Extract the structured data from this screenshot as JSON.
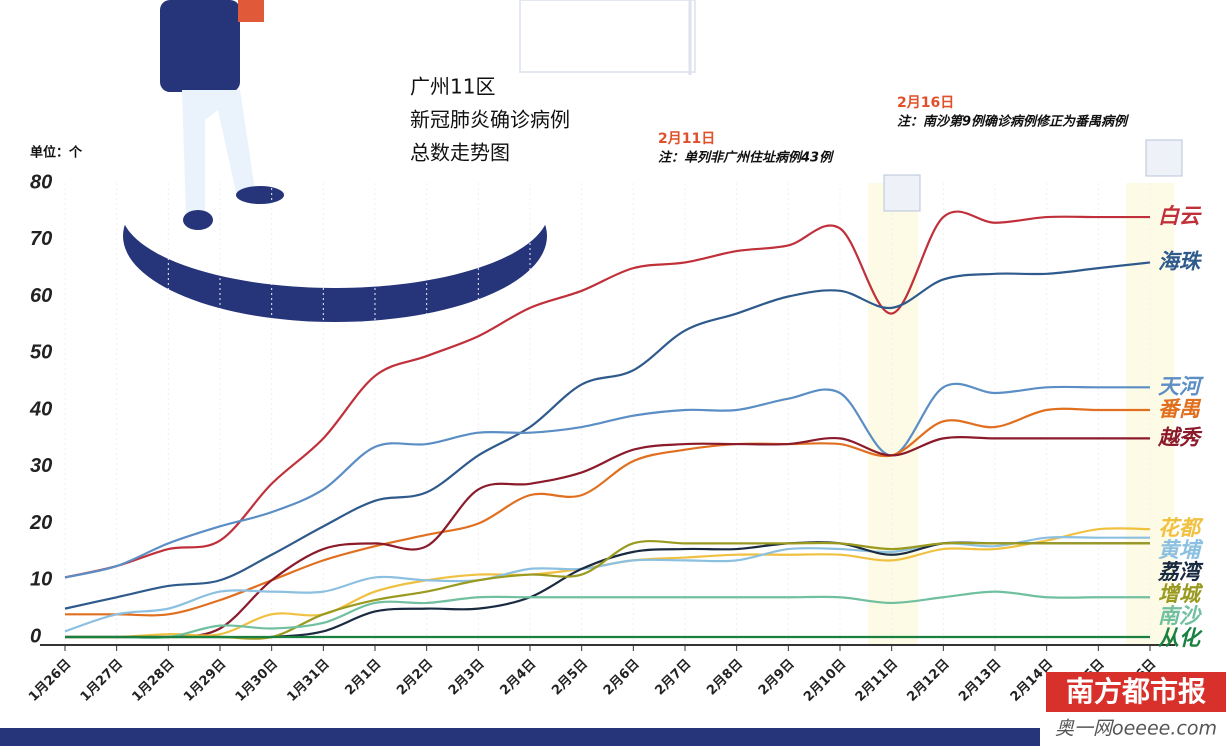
{
  "chart_data": {
    "type": "line",
    "title_lines": [
      "广州11区",
      "新冠肺炎确诊病例",
      "总数走势图"
    ],
    "unit_label": "单位：个",
    "annotations": [
      {
        "date": "2月11日",
        "note": "注：单列非广州住址病例43例"
      },
      {
        "date": "2月16日",
        "note": "注：南沙第9例确诊病例修正为番禺病例"
      }
    ],
    "watermark": {
      "brand": "南方都市报",
      "site": "奥一网oeeee.com"
    },
    "categories": [
      "1月26日",
      "1月27日",
      "1月28日",
      "1月29日",
      "1月30日",
      "1月31日",
      "2月1日",
      "2月2日",
      "2月3日",
      "2月4日",
      "2月5日",
      "2月6日",
      "2月7日",
      "2月8日",
      "2月9日",
      "2月10日",
      "2月11日",
      "2月12日",
      "2月13日",
      "2月14日",
      "2月15日",
      "2月16日"
    ],
    "ylim": [
      0,
      80
    ],
    "yticks": [
      0,
      10,
      20,
      30,
      40,
      50,
      60,
      70,
      80
    ],
    "series": [
      {
        "name": "白云",
        "color": "#c0303a",
        "values": [
          10.5,
          12.5,
          15.5,
          17,
          27,
          35,
          46,
          49.5,
          53,
          58,
          61,
          65,
          66,
          68,
          69,
          72,
          57,
          74,
          73,
          74,
          74,
          74
        ]
      },
      {
        "name": "海珠",
        "color": "#2e5a8c",
        "values": [
          5,
          7,
          9,
          10,
          14.5,
          19.5,
          24,
          25.5,
          32,
          37,
          44.5,
          47,
          54,
          57,
          60,
          61,
          58,
          63,
          64,
          64,
          65,
          66
        ]
      },
      {
        "name": "天河",
        "color": "#5b8ec4",
        "values": [
          10.5,
          12.5,
          16.5,
          19.5,
          22,
          26,
          33.5,
          34,
          36,
          36,
          37,
          39,
          40,
          40,
          42,
          43,
          32,
          44,
          43,
          44,
          44,
          44
        ]
      },
      {
        "name": "番禺",
        "color": "#e07020",
        "values": [
          4,
          4,
          4,
          6.5,
          10,
          13.5,
          16,
          18,
          20,
          25,
          25,
          31,
          33,
          34,
          34,
          34,
          32,
          38,
          37,
          40,
          40,
          40
        ]
      },
      {
        "name": "越秀",
        "color": "#8b1a2a",
        "values": [
          0,
          0,
          0,
          1.5,
          10,
          15.5,
          16.5,
          16,
          26,
          27,
          29,
          33,
          34,
          34,
          34,
          35,
          32,
          35,
          35,
          35,
          35,
          35
        ]
      },
      {
        "name": "花都",
        "color": "#f0c040",
        "values": [
          0,
          0,
          0.5,
          0.5,
          4,
          4,
          8,
          10,
          11,
          11,
          12,
          13.5,
          14,
          14.5,
          14.5,
          14.5,
          13.5,
          15.5,
          15.5,
          17,
          19,
          19
        ]
      },
      {
        "name": "黄埔",
        "color": "#8cc0e0",
        "values": [
          1,
          4,
          5,
          8,
          8,
          8,
          10.5,
          10,
          10,
          12,
          12,
          13.5,
          13.5,
          13.5,
          15.5,
          15.5,
          15,
          16.5,
          16,
          17.5,
          17.5,
          17.5
        ]
      },
      {
        "name": "荔湾",
        "color": "#1a2a40",
        "values": [
          0,
          0,
          0,
          0,
          0,
          1,
          4.5,
          5,
          5,
          7,
          12,
          15,
          15.5,
          15.5,
          16.5,
          16.5,
          14.5,
          16.5,
          16.5,
          16.5,
          16.5,
          16.5
        ]
      },
      {
        "name": "增城",
        "color": "#9a9a20",
        "values": [
          0,
          0,
          0,
          0,
          0,
          4,
          6.5,
          8,
          10,
          11,
          11,
          16.5,
          16.5,
          16.5,
          16.5,
          16.5,
          15.5,
          16.5,
          16.5,
          16.5,
          16.5,
          16.5
        ]
      },
      {
        "name": "南沙",
        "color": "#70c0a0",
        "values": [
          0,
          0,
          0,
          2,
          1.5,
          2.5,
          6,
          6,
          7,
          7,
          7,
          7,
          7,
          7,
          7,
          7,
          6,
          7,
          8,
          7,
          7,
          7
        ]
      },
      {
        "name": "从化",
        "color": "#1a8040",
        "values": [
          0,
          0,
          0,
          0,
          0,
          0,
          0,
          0,
          0,
          0,
          0,
          0,
          0,
          0,
          0,
          0,
          0,
          0,
          0,
          0,
          0,
          0
        ]
      }
    ]
  }
}
